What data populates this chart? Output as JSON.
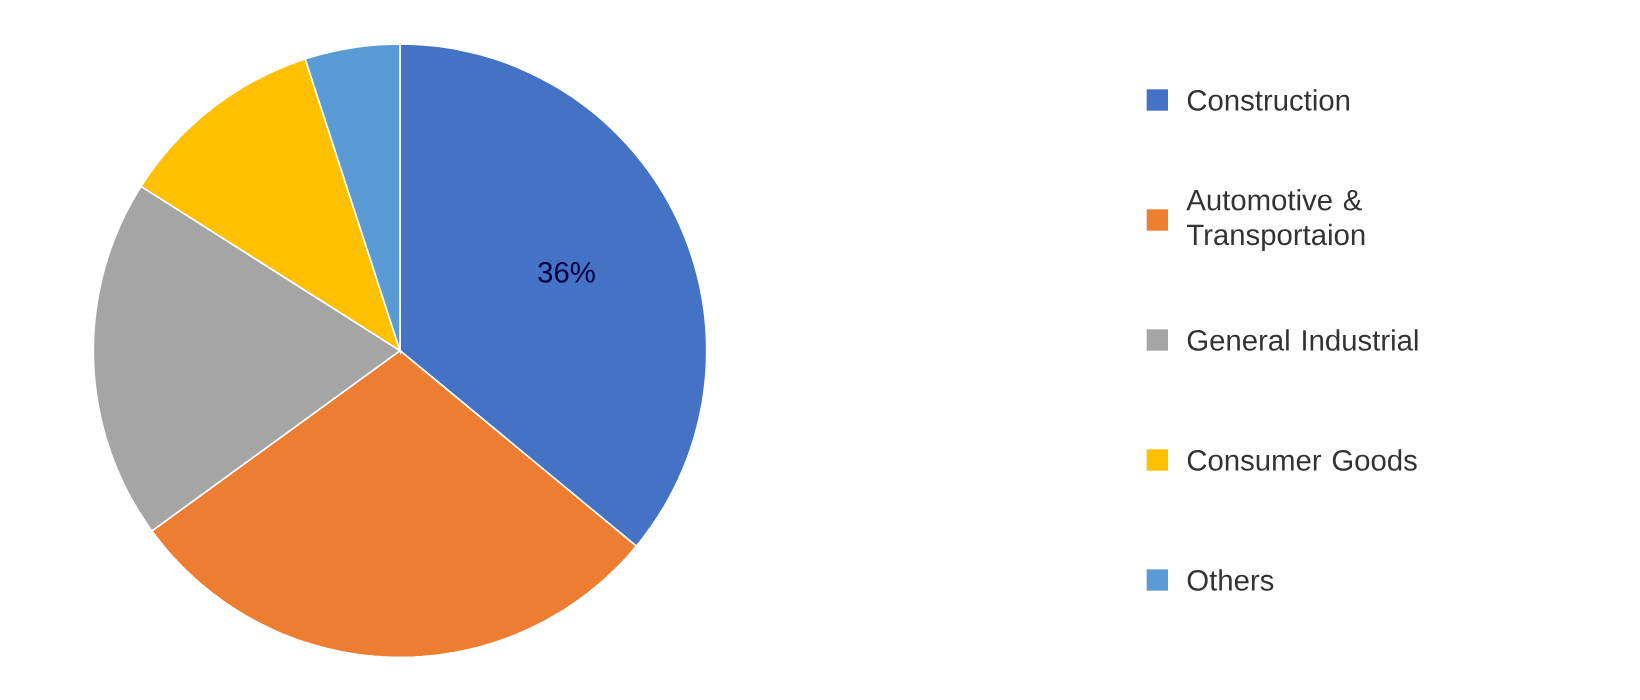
{
  "chart_data": {
    "type": "pie",
    "categories": [
      "Construction",
      "Automotive & Transportaion",
      "General Industrial",
      "Consumer Goods",
      "Others"
    ],
    "values": [
      36,
      29,
      19,
      11,
      5
    ],
    "colors": [
      "#4472c4",
      "#ed7d31",
      "#a5a5a5",
      "#ffc000",
      "#5b9bd5"
    ],
    "value_labels": [
      "36%",
      null,
      null,
      null,
      null
    ],
    "legend": "right"
  }
}
